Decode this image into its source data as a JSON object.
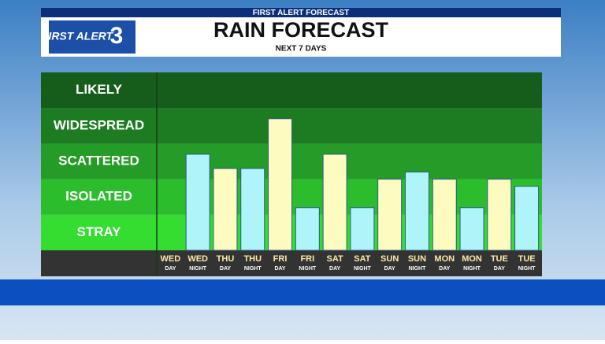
{
  "header": {
    "banner": "FIRST ALERT FORECAST",
    "logo_text": "FIRST ALERT",
    "logo_number": "3"
  },
  "chart_data": {
    "type": "bar",
    "title": "RAIN FORECAST",
    "subtitle": "NEXT 7 DAYS",
    "categories": [
      "WED",
      "WED",
      "THU",
      "THU",
      "FRI",
      "FRI",
      "SAT",
      "SAT",
      "SUN",
      "SUN",
      "MON",
      "MON",
      "TUE",
      "TUE"
    ],
    "periods": [
      "DAY",
      "NIGHT",
      "DAY",
      "NIGHT",
      "DAY",
      "NIGHT",
      "DAY",
      "NIGHT",
      "DAY",
      "NIGHT",
      "DAY",
      "NIGHT",
      "DAY",
      "NIGHT"
    ],
    "values": [
      0,
      2.7,
      2.3,
      2.3,
      3.7,
      1.2,
      2.7,
      1.2,
      2.0,
      2.2,
      2.0,
      1.2,
      2.0,
      1.8
    ],
    "colors": [
      "#fdfbc0",
      "#aef4f9",
      "#fdfbc0",
      "#aef4f9",
      "#fdfbc0",
      "#aef4f9",
      "#fdfbc0",
      "#aef4f9",
      "#fdfbc0",
      "#aef4f9",
      "#fdfbc0",
      "#aef4f9",
      "#fdfbc0",
      "#aef4f9"
    ],
    "ylim": [
      0,
      5
    ],
    "yticks": [
      {
        "value": 0.5,
        "label": "STRAY"
      },
      {
        "value": 1.5,
        "label": "ISOLATED"
      },
      {
        "value": 2.5,
        "label": "SCATTERED"
      },
      {
        "value": 3.5,
        "label": "WIDESPREAD"
      },
      {
        "value": 4.5,
        "label": "LIKELY"
      }
    ],
    "band_colors": [
      "#34dd30",
      "#2cbd2c",
      "#259c28",
      "#1d7c22",
      "#165c1b"
    ]
  }
}
